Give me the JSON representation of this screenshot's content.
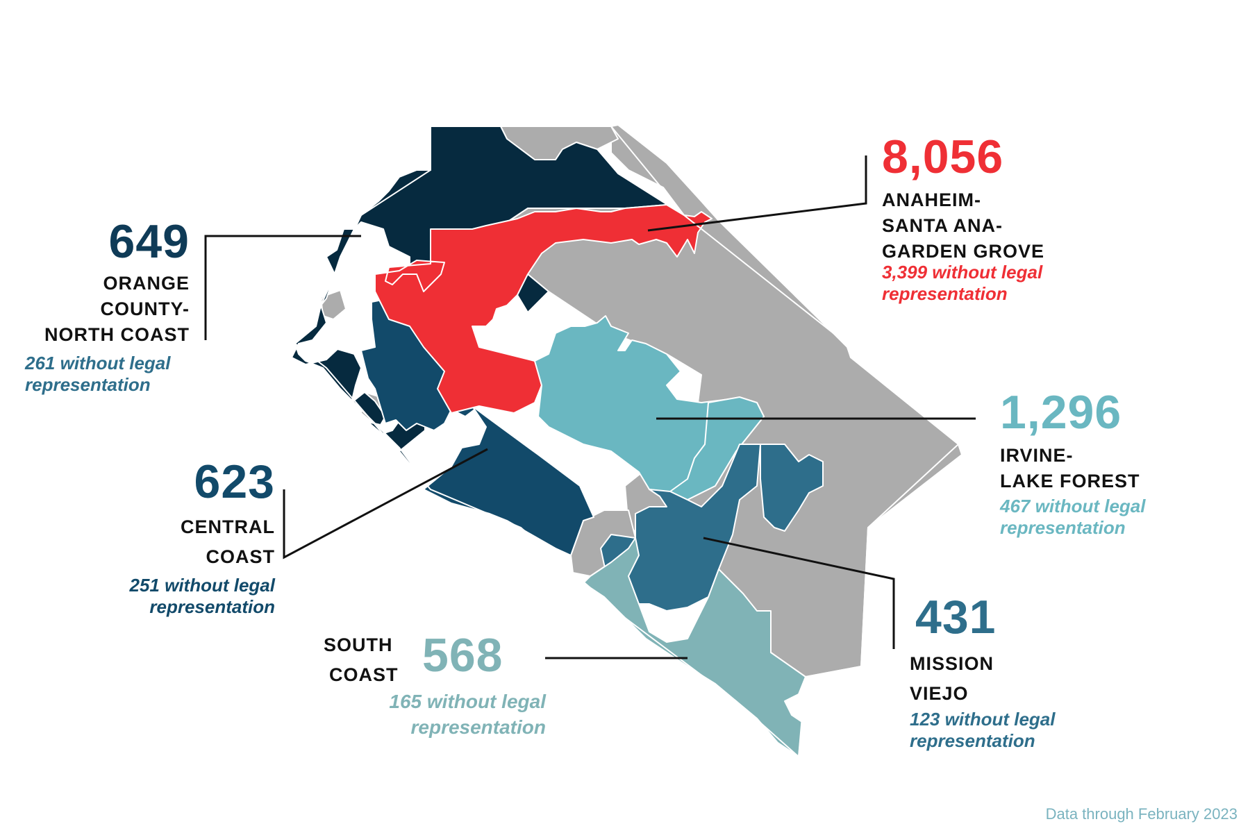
{
  "colors": {
    "anaheim": "#ef2f35",
    "north_coast": "#062a3f",
    "central_coast": "#124a6a",
    "irvine": "#6ab7c1",
    "mission_viejo": "#2e6e8b",
    "south_coast": "#80b3b6",
    "no_data": "#acacac"
  },
  "regions": {
    "anaheim": {
      "count": "8,056",
      "name_lines": [
        "ANAHEIM-",
        "SANTA ANA-",
        "GARDEN GROVE"
      ],
      "note_lines": [
        "3,399  without legal",
        "representation"
      ]
    },
    "north_coast": {
      "count": "649",
      "name_lines": [
        "ORANGE",
        "COUNTY-",
        "NORTH COAST"
      ],
      "note_lines": [
        "261 without legal",
        "representation"
      ]
    },
    "central_coast": {
      "count": "623",
      "name_lines": [
        "CENTRAL",
        "COAST"
      ],
      "note_lines": [
        "251 without legal",
        "representation"
      ]
    },
    "irvine": {
      "count": "1,296",
      "name_lines": [
        "IRVINE-",
        "LAKE FOREST"
      ],
      "note_lines": [
        "467 without legal",
        "representation"
      ]
    },
    "mission_viejo": {
      "count": "431",
      "name_lines": [
        "MISSION",
        "VIEJO"
      ],
      "note_lines": [
        "123 without legal",
        "representation"
      ]
    },
    "south_coast": {
      "count": "568",
      "name_lines": [
        "SOUTH",
        "COAST"
      ],
      "note_lines": [
        "165 without legal",
        "representation"
      ]
    }
  },
  "footer": "Data through February 2023"
}
